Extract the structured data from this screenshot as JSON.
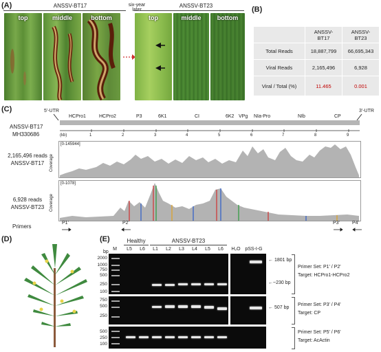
{
  "panels": {
    "A": "(A)",
    "B": "(B)",
    "C": "(C)",
    "D": "(D)",
    "E": "(E)"
  },
  "panel_a": {
    "left_title": "ANSSV-BT17",
    "right_title": "ANSSV-BT23",
    "middle_text": "six-year later",
    "left_leaves": [
      "top",
      "middle",
      "bottom"
    ],
    "right_leaves": [
      "top",
      "middle",
      "bottom"
    ]
  },
  "panel_b": {
    "headers": [
      "",
      "ANSSV-BT17",
      "ANSSV-BT23"
    ],
    "rows": [
      {
        "label": "Total Reads",
        "bt17": "18,887,799",
        "bt23": "66,695,343"
      },
      {
        "label": "Viral Reads",
        "bt17": "2,165,496",
        "bt23": "6,928"
      },
      {
        "label": "Viral / Total (%)",
        "bt17": "11.465",
        "bt23": "0.001"
      }
    ],
    "highlight_color": "#c00000"
  },
  "panel_c": {
    "utr5": "5'-UTR",
    "utr3": "3'-UTR",
    "virus": "ANSSV-BT17",
    "accession": "MH330686",
    "genes": [
      "HCPro1",
      "HCPro2",
      "P3",
      "6K1",
      "CI",
      "6K2",
      "VPg",
      "NIa-Pro",
      "NIb",
      "CP"
    ],
    "kb_label": "(kb)",
    "kb_ticks": [
      "1",
      "2",
      "3",
      "4",
      "5",
      "6",
      "7",
      "8",
      "9"
    ],
    "track1": {
      "reads": "2,165,496 reads",
      "name": "ANSSV-BT17",
      "range": "[0-145944]",
      "axis": "Coverage"
    },
    "track2": {
      "reads": "6,928 reads",
      "name": "ANSSV-BT23",
      "range": "[0-1078]",
      "axis": "Coverage"
    },
    "primers_label": "Primers",
    "primers": [
      "P1'",
      "P2'",
      "P3'",
      "P4'"
    ]
  },
  "panel_e": {
    "bp": "bp",
    "groups": {
      "healthy": "Healthy",
      "infected": "ANSSV-BT23"
    },
    "lanes": [
      "M",
      "L5",
      "L6",
      "L1",
      "L2",
      "L3",
      "L4",
      "L5",
      "L6",
      "H₂O",
      "pSS-I-G"
    ],
    "ladder1": [
      "2000",
      "1000",
      "750",
      "500",
      "250",
      "100"
    ],
    "ladder2": [
      "750",
      "500",
      "250"
    ],
    "ladder3": [
      "500",
      "250",
      "100"
    ],
    "bands": {
      "b1801": "1801 bp",
      "b230": "~230 bp",
      "b507": "507 bp"
    },
    "sets": [
      {
        "primer": "Primer Set: P1' / P2'",
        "target": "Target: HCPro1-HCPro2"
      },
      {
        "primer": "Primer Set: P3' / P4'",
        "target": "Target: CP"
      },
      {
        "primer": "Primer Set: P5' / P6'",
        "target": "Target: AcActin"
      }
    ]
  }
}
